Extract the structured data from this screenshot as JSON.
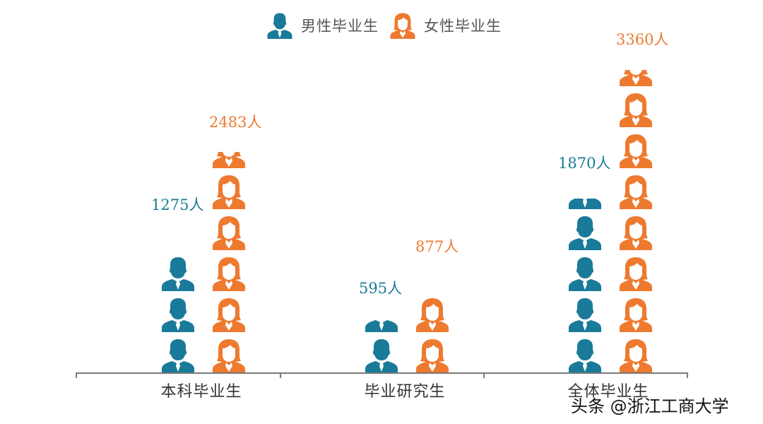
{
  "legend": {
    "male_label": "男性毕业生",
    "female_label": "女性毕业生",
    "male_icon": "male-person-icon",
    "female_icon": "female-person-icon"
  },
  "colors": {
    "male": "#1a7a99",
    "female": "#ee7a2f",
    "axis": "#7a7a7a"
  },
  "groups": [
    {
      "label": "本科毕业生",
      "male_value_label": "1275人",
      "female_value_label": "2483人",
      "male_icons_full": 3,
      "male_icon_partial": 0,
      "female_icons_full": 5,
      "female_icon_partial": 0.45
    },
    {
      "label": "毕业研究生",
      "male_value_label": "595人",
      "female_value_label": "877人",
      "male_icons_full": 1,
      "male_icon_partial": 0.35,
      "female_icons_full": 2,
      "female_icon_partial": 0
    },
    {
      "label": "全体毕业生",
      "male_value_label": "1870人",
      "female_value_label": "3360人",
      "male_icons_full": 4,
      "male_icon_partial": 0.3,
      "female_icons_full": 7,
      "female_icon_partial": 0.45
    }
  ],
  "watermark": "头条 @浙江工商大学",
  "chart_data": {
    "type": "bar",
    "subtype": "pictograph",
    "title": "",
    "categories": [
      "本科毕业生",
      "毕业研究生",
      "全体毕业生"
    ],
    "series": [
      {
        "name": "男性毕业生",
        "values": [
          1275,
          595,
          1870
        ],
        "color": "#1a7a99"
      },
      {
        "name": "女性毕业生",
        "values": [
          2483,
          877,
          3360
        ],
        "color": "#ee7a2f"
      }
    ],
    "data_labels": {
      "男性毕业生": [
        "1275人",
        "595人",
        "1870人"
      ],
      "女性毕业生": [
        "2483人",
        "877人",
        "3360人"
      ]
    },
    "xlabel": "",
    "ylabel": "",
    "unit": "人",
    "legend_position": "top",
    "grid": false
  }
}
